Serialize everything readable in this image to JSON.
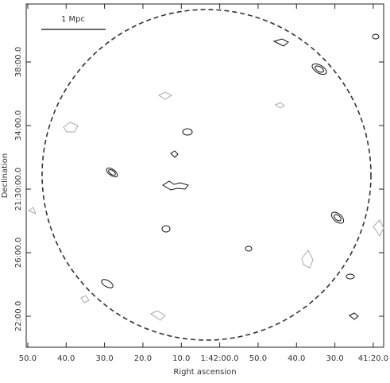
{
  "chart_data": {
    "type": "contour",
    "xlabel": "Right ascension",
    "ylabel": "Declination",
    "annotation": "1 Mpc",
    "xlim": [
      6170.4,
      6077.3
    ],
    "ylim": [
      1280.05,
      1301.65
    ],
    "xticks": [
      {
        "value": 6170,
        "label": "50.0"
      },
      {
        "value": 6160,
        "label": "40.0"
      },
      {
        "value": 6150,
        "label": "30.0"
      },
      {
        "value": 6140,
        "label": "20.0"
      },
      {
        "value": 6130,
        "label": "10.0"
      },
      {
        "value": 6120,
        "label": "1:42:00.0"
      },
      {
        "value": 6110,
        "label": "50.0"
      },
      {
        "value": 6100,
        "label": "40.0"
      },
      {
        "value": 6090,
        "label": "30.0"
      },
      {
        "value": 6080,
        "label": "41:20.0"
      }
    ],
    "yticks": [
      {
        "value": 1282,
        "label": "22:00.0"
      },
      {
        "value": 1286,
        "label": "26:00.0"
      },
      {
        "value": 1290,
        "label": "21:30:00.0"
      },
      {
        "value": 1294,
        "label": "34:00.0"
      },
      {
        "value": 1298,
        "label": "38:00.0"
      }
    ]
  }
}
